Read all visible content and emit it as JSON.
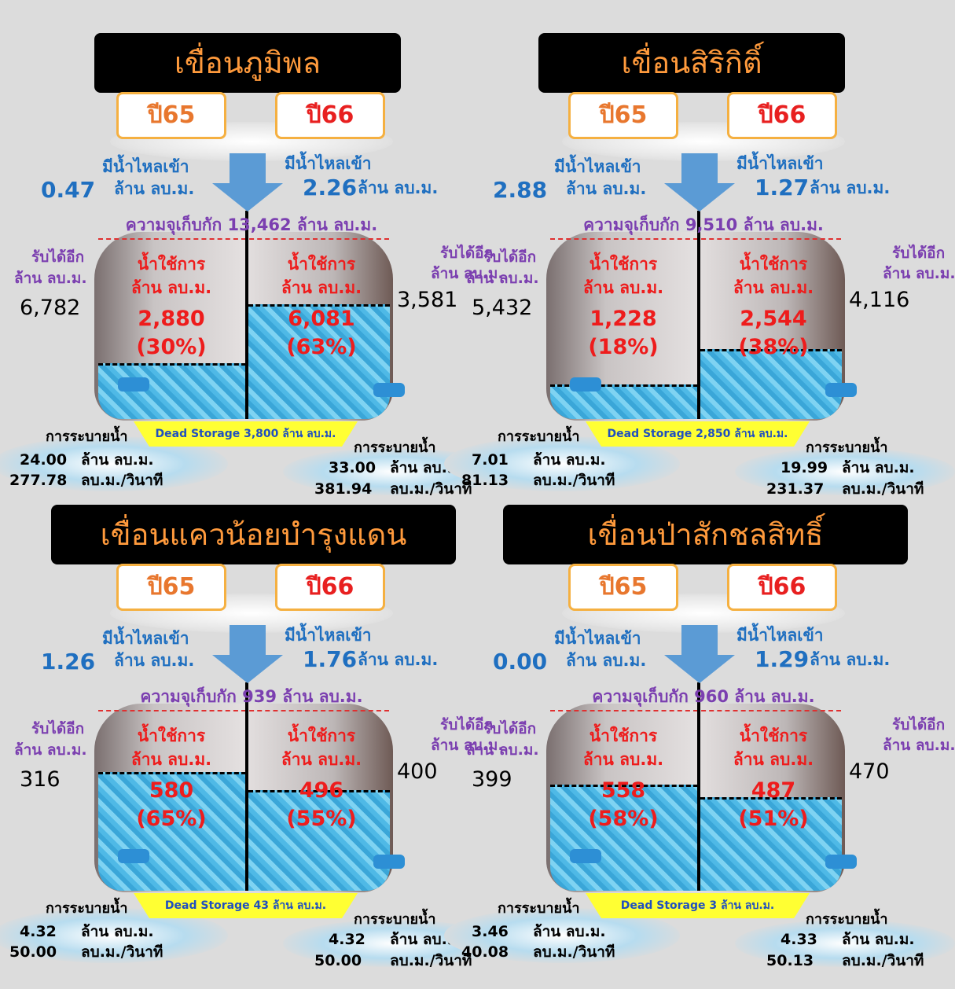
{
  "dams": [
    {
      "name": "เขื่อนภูมิพล",
      "year_a": "ปี65",
      "year_b": "ปี66",
      "inflow": [
        {
          "label": "มีน้ำไหลเข้า",
          "value": "0.47",
          "unit": "ล้าน ลบ.ม."
        },
        {
          "label": "มีน้ำไหลเข้า",
          "value": "2.26",
          "unit": "ล้าน ลบ.ม."
        }
      ],
      "capacity": "ความจุเก็บกัก 13,462 ล้าน ลบ.ม.",
      "space": [
        {
          "label": "รับได้อีก",
          "unit": "ล้าน ลบ.ม.",
          "value": "6,782"
        },
        {
          "label": "รับได้อีก",
          "unit": "ล้าน ลบ.ม.",
          "value": "3,581"
        }
      ],
      "usable": [
        {
          "label": "น้ำใช้การ",
          "unit": "ล้าน ลบ.ม.",
          "value": "2,880",
          "pct": "(30%)"
        },
        {
          "label": "น้ำใช้การ",
          "unit": "ล้าน ลบ.ม.",
          "value": "6,081",
          "pct": "(63%)"
        }
      ],
      "dead": "Dead Storage 3,800 ล้าน ลบ.ม.",
      "release": [
        {
          "label": "การระบายน้ำ",
          "volume": "24.00",
          "volume_unit": "ล้าน ลบ.ม.",
          "rate": "277.78",
          "rate_unit": "ลบ.ม./วินาที"
        },
        {
          "label": "การระบายน้ำ",
          "volume": "33.00",
          "volume_unit": "ล้าน ลบ.ม.",
          "rate": "381.94",
          "rate_unit": "ลบ.ม./วินาที"
        }
      ]
    },
    {
      "name": "เขื่อนสิริกิติ์",
      "year_a": "ปี65",
      "year_b": "ปี66",
      "inflow": [
        {
          "label": "มีน้ำไหลเข้า",
          "value": "2.88",
          "unit": "ล้าน ลบ.ม."
        },
        {
          "label": "มีน้ำไหลเข้า",
          "value": "1.27",
          "unit": "ล้าน ลบ.ม."
        }
      ],
      "capacity": "ความจุเก็บกัก 9,510 ล้าน ลบ.ม.",
      "space": [
        {
          "label": "รับได้อีก",
          "unit": "ล้าน ลบ.ม.",
          "value": "5,432"
        },
        {
          "label": "รับได้อีก",
          "unit": "ล้าน ลบ.ม.",
          "value": "4,116"
        }
      ],
      "usable": [
        {
          "label": "น้ำใช้การ",
          "unit": "ล้าน ลบ.ม.",
          "value": "1,228",
          "pct": "(18%)"
        },
        {
          "label": "น้ำใช้การ",
          "unit": "ล้าน ลบ.ม.",
          "value": "2,544",
          "pct": "(38%)"
        }
      ],
      "dead": "Dead Storage 2,850 ล้าน ลบ.ม.",
      "release": [
        {
          "label": "การระบายน้ำ",
          "volume": "7.01",
          "volume_unit": "ล้าน ลบ.ม.",
          "rate": "81.13",
          "rate_unit": "ลบ.ม./วินาที"
        },
        {
          "label": "การระบายน้ำ",
          "volume": "19.99",
          "volume_unit": "ล้าน ลบ.ม.",
          "rate": "231.37",
          "rate_unit": "ลบ.ม./วินาที"
        }
      ]
    },
    {
      "name": "เขื่อนแควน้อยบำรุงแดน",
      "year_a": "ปี65",
      "year_b": "ปี66",
      "inflow": [
        {
          "label": "มีน้ำไหลเข้า",
          "value": "1.26",
          "unit": "ล้าน ลบ.ม."
        },
        {
          "label": "มีน้ำไหลเข้า",
          "value": "1.76",
          "unit": "ล้าน ลบ.ม."
        }
      ],
      "capacity": "ความจุเก็บกัก 939 ล้าน ลบ.ม.",
      "space": [
        {
          "label": "รับได้อีก",
          "unit": "ล้าน ลบ.ม.",
          "value": "316"
        },
        {
          "label": "รับได้อีก",
          "unit": "ล้าน ลบ.ม.",
          "value": "400"
        }
      ],
      "usable": [
        {
          "label": "น้ำใช้การ",
          "unit": "ล้าน ลบ.ม.",
          "value": "580",
          "pct": "(65%)"
        },
        {
          "label": "น้ำใช้การ",
          "unit": "ล้าน ลบ.ม.",
          "value": "496",
          "pct": "(55%)"
        }
      ],
      "dead": "Dead Storage 43 ล้าน ลบ.ม.",
      "release": [
        {
          "label": "การระบายน้ำ",
          "volume": "4.32",
          "volume_unit": "ล้าน ลบ.ม.",
          "rate": "50.00",
          "rate_unit": "ลบ.ม./วินาที"
        },
        {
          "label": "การระบายน้ำ",
          "volume": "4.32",
          "volume_unit": "ล้าน ลบ.ม.",
          "rate": "50.00",
          "rate_unit": "ลบ.ม./วินาที"
        }
      ]
    },
    {
      "name": "เขื่อนป่าสักชลสิทธิ์",
      "year_a": "ปี65",
      "year_b": "ปี66",
      "inflow": [
        {
          "label": "มีน้ำไหลเข้า",
          "value": "0.00",
          "unit": "ล้าน ลบ.ม."
        },
        {
          "label": "มีน้ำไหลเข้า",
          "value": "1.29",
          "unit": "ล้าน ลบ.ม."
        }
      ],
      "capacity": "ความจุเก็บกัก 960 ล้าน ลบ.ม.",
      "space": [
        {
          "label": "รับได้อีก",
          "unit": "ล้าน ลบ.ม.",
          "value": "399"
        },
        {
          "label": "รับได้อีก",
          "unit": "ล้าน ลบ.ม.",
          "value": "470"
        }
      ],
      "usable": [
        {
          "label": "น้ำใช้การ",
          "unit": "ล้าน ลบ.ม.",
          "value": "558",
          "pct": "(58%)"
        },
        {
          "label": "น้ำใช้การ",
          "unit": "ล้าน ลบ.ม.",
          "value": "487",
          "pct": "(51%)"
        }
      ],
      "dead": "Dead Storage 3 ล้าน ลบ.ม.",
      "release": [
        {
          "label": "การระบายน้ำ",
          "volume": "3.46",
          "volume_unit": "ล้าน ลบ.ม.",
          "rate": "40.08",
          "rate_unit": "ลบ.ม./วินาที"
        },
        {
          "label": "การระบายน้ำ",
          "volume": "4.33",
          "volume_unit": "ล้าน ลบ.ม.",
          "rate": "50.13",
          "rate_unit": "ลบ.ม./วินาที"
        }
      ]
    }
  ]
}
